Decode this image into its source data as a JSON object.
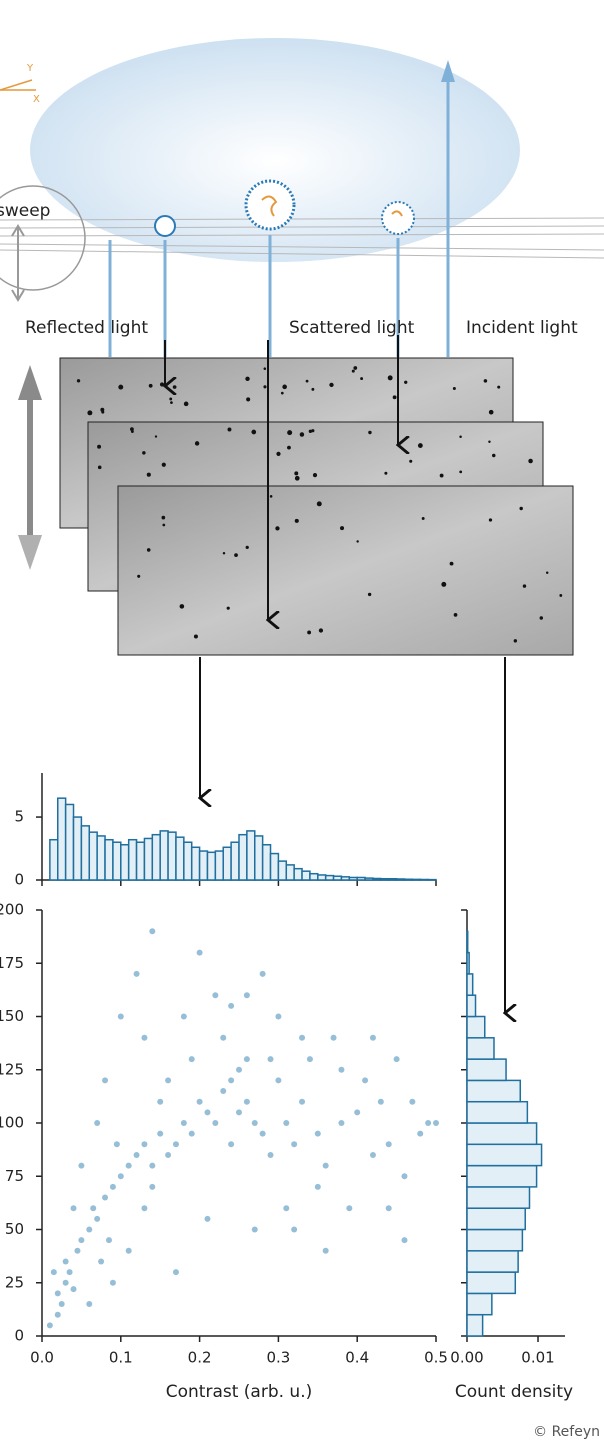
{
  "diagram": {
    "axis_y": "Y",
    "axis_x": "X",
    "sweep": "sweep",
    "reflected": "Reflected light",
    "scattered": "Scattered light",
    "incident": "Incident light",
    "copyright": "© Refeyn"
  },
  "chart_data": [
    {
      "type": "scatter",
      "xlabel": "Contrast (arb. u.)",
      "color": "#8bb8d3",
      "xlim": [
        0,
        0.5
      ],
      "ylim": [
        0,
        200
      ],
      "xticks": [
        {
          "value": 0,
          "label": "0.0"
        },
        {
          "value": 0.1,
          "label": "0.1"
        },
        {
          "value": 0.2,
          "label": "0.2"
        },
        {
          "value": 0.3,
          "label": "0.3"
        },
        {
          "value": 0.4,
          "label": "0.4"
        },
        {
          "value": 0.5,
          "label": "0.5"
        }
      ],
      "yticks": [
        0,
        25,
        50,
        75,
        100,
        125,
        150,
        175,
        200
      ],
      "x": [
        0.02,
        0.03,
        0.025,
        0.035,
        0.04,
        0.03,
        0.02,
        0.045,
        0.05,
        0.015,
        0.06,
        0.07,
        0.065,
        0.08,
        0.09,
        0.085,
        0.1,
        0.11,
        0.075,
        0.095,
        0.12,
        0.13,
        0.14,
        0.15,
        0.16,
        0.17,
        0.15,
        0.14,
        0.16,
        0.13,
        0.18,
        0.19,
        0.2,
        0.21,
        0.22,
        0.23,
        0.24,
        0.25,
        0.26,
        0.27,
        0.25,
        0.24,
        0.26,
        0.28,
        0.23,
        0.29,
        0.3,
        0.31,
        0.32,
        0.33,
        0.35,
        0.36,
        0.38,
        0.4,
        0.42,
        0.44,
        0.46,
        0.48,
        0.5,
        0.47,
        0.05,
        0.08,
        0.1,
        0.12,
        0.14,
        0.18,
        0.2,
        0.22,
        0.26,
        0.28,
        0.3,
        0.34,
        0.37,
        0.41,
        0.43,
        0.45,
        0.49,
        0.39,
        0.36,
        0.32,
        0.01,
        0.04,
        0.06,
        0.09,
        0.11,
        0.17,
        0.21,
        0.27,
        0.31,
        0.35,
        0.19,
        0.07,
        0.13,
        0.24,
        0.29,
        0.33,
        0.46,
        0.44,
        0.42,
        0.38
      ],
      "y": [
        20,
        25,
        15,
        30,
        22,
        35,
        10,
        40,
        45,
        30,
        50,
        55,
        60,
        65,
        70,
        45,
        75,
        80,
        35,
        90,
        85,
        90,
        80,
        95,
        85,
        90,
        110,
        70,
        120,
        60,
        100,
        95,
        110,
        105,
        100,
        115,
        120,
        105,
        110,
        100,
        125,
        90,
        130,
        95,
        140,
        85,
        120,
        100,
        90,
        110,
        95,
        80,
        100,
        105,
        85,
        90,
        75,
        95,
        100,
        110,
        80,
        120,
        150,
        170,
        190,
        150,
        180,
        160,
        160,
        170,
        150,
        130,
        140,
        120,
        110,
        130,
        100,
        60,
        40,
        50,
        5,
        60,
        15,
        25,
        40,
        30,
        55,
        50,
        60,
        70,
        130,
        100,
        140,
        155,
        130,
        140,
        45,
        60,
        140,
        125
      ]
    },
    {
      "type": "histogram",
      "color": "#1f6f9f",
      "fill": "#e3eff6",
      "xlim": [
        0,
        0.5
      ],
      "ylim": [
        0,
        8.5
      ],
      "xticks": [
        0,
        0.1,
        0.2,
        0.3,
        0.4,
        0.5
      ],
      "yticks": [
        0,
        5
      ],
      "bins": [
        0,
        0.01,
        0.02,
        0.03,
        0.04,
        0.05,
        0.06,
        0.07,
        0.08,
        0.09,
        0.1,
        0.11,
        0.12,
        0.13,
        0.14,
        0.15,
        0.16,
        0.17,
        0.18,
        0.19,
        0.2,
        0.21,
        0.22,
        0.23,
        0.24,
        0.25,
        0.26,
        0.27,
        0.28,
        0.29,
        0.3,
        0.31,
        0.32,
        0.33,
        0.34,
        0.35,
        0.36,
        0.37,
        0.38,
        0.39,
        0.4,
        0.41,
        0.42,
        0.43,
        0.44,
        0.45,
        0.46,
        0.47,
        0.48,
        0.49,
        0.5
      ],
      "values": [
        0,
        3.2,
        6.5,
        6.0,
        5.0,
        4.3,
        3.8,
        3.5,
        3.2,
        3.0,
        2.8,
        3.2,
        3.0,
        3.3,
        3.6,
        3.9,
        3.8,
        3.4,
        3.0,
        2.6,
        2.3,
        2.2,
        2.3,
        2.6,
        3.0,
        3.6,
        3.9,
        3.5,
        2.8,
        2.1,
        1.5,
        1.2,
        0.9,
        0.7,
        0.5,
        0.4,
        0.35,
        0.3,
        0.25,
        0.2,
        0.2,
        0.15,
        0.12,
        0.1,
        0.1,
        0.08,
        0.06,
        0.05,
        0.04,
        0.03
      ]
    },
    {
      "type": "histogram",
      "orientation": "horizontal",
      "xlabel": "Count density",
      "color": "#1f6f9f",
      "fill": "#e3eff6",
      "xlim": [
        0,
        0.0138
      ],
      "ylim": [
        0,
        200
      ],
      "xticks": [
        {
          "value": 0,
          "label": "0.00"
        },
        {
          "value": 0.01,
          "label": "0.01"
        }
      ],
      "yticks": [
        0,
        25,
        50,
        75,
        100,
        125,
        150,
        175,
        200
      ],
      "bins": [
        0,
        10,
        20,
        30,
        40,
        50,
        60,
        70,
        80,
        90,
        100,
        110,
        120,
        130,
        140,
        150,
        160,
        170,
        180,
        190,
        200
      ],
      "values": [
        0.0022,
        0.0035,
        0.0068,
        0.0072,
        0.0078,
        0.0082,
        0.0088,
        0.0098,
        0.0105,
        0.0098,
        0.0085,
        0.0075,
        0.0055,
        0.0038,
        0.0025,
        0.0012,
        0.0008,
        0.0003,
        0.0001,
        0
      ]
    }
  ]
}
